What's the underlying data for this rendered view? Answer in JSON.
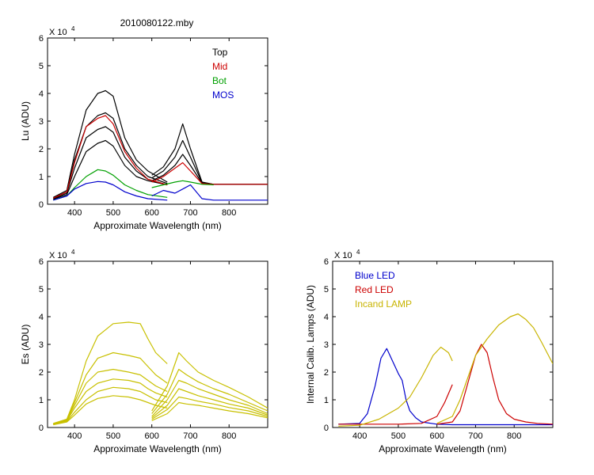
{
  "figure_title": "2010080122.mby",
  "chart_data": [
    {
      "id": "lu",
      "type": "line",
      "title": "2010080122.mby",
      "xlabel": "Approximate Wavelength (nm)",
      "ylabel": "Lu (ADU)",
      "exponent_label": "X 10",
      "exponent_power": "4",
      "xlim": [
        330,
        900
      ],
      "ylim": [
        0,
        6
      ],
      "xticks": [
        "400",
        "500",
        "600",
        "700",
        "800"
      ],
      "xtick_values": [
        400,
        500,
        600,
        700,
        800
      ],
      "yticks": [
        "0",
        "1",
        "2",
        "3",
        "4",
        "5",
        "6"
      ],
      "ytick_values": [
        0,
        1,
        2,
        3,
        4,
        5,
        6
      ],
      "grid": false,
      "legend_position": "top-right",
      "legend": [
        {
          "name": "Top",
          "color": "#000000"
        },
        {
          "name": "Mid",
          "color": "#cc0000"
        },
        {
          "name": "Bot",
          "color": "#00a000"
        },
        {
          "name": "MOS",
          "color": "#0000cc"
        }
      ],
      "series": [
        {
          "group": "Top",
          "color": "#000000",
          "x": [
            345,
            380,
            400,
            430,
            460,
            480,
            500,
            530,
            560,
            590,
            640
          ],
          "y": [
            0.25,
            0.5,
            1.8,
            3.4,
            4.0,
            4.1,
            3.9,
            2.4,
            1.6,
            1.2,
            0.8
          ]
        },
        {
          "group": "Top",
          "color": "#000000",
          "x": [
            345,
            380,
            400,
            430,
            460,
            480,
            500,
            530,
            560,
            590,
            640
          ],
          "y": [
            0.22,
            0.45,
            1.6,
            2.8,
            3.2,
            3.3,
            3.1,
            2.0,
            1.4,
            1.0,
            0.75
          ]
        },
        {
          "group": "Top",
          "color": "#000000",
          "x": [
            345,
            380,
            400,
            430,
            460,
            480,
            500,
            530,
            560,
            590,
            640
          ],
          "y": [
            0.2,
            0.4,
            1.3,
            2.4,
            2.7,
            2.8,
            2.6,
            1.7,
            1.2,
            0.9,
            0.7
          ]
        },
        {
          "group": "Top",
          "color": "#000000",
          "x": [
            345,
            380,
            400,
            430,
            460,
            480,
            500,
            530,
            560,
            590,
            640
          ],
          "y": [
            0.18,
            0.35,
            1.0,
            1.9,
            2.2,
            2.3,
            2.1,
            1.4,
            1.0,
            0.85,
            0.7
          ]
        },
        {
          "group": "Top",
          "color": "#000000",
          "x": [
            600,
            630,
            660,
            680,
            700,
            730,
            760,
            800,
            850,
            900
          ],
          "y": [
            1.05,
            1.35,
            2.0,
            2.9,
            2.0,
            0.8,
            0.72,
            0.72,
            0.72,
            0.72
          ]
        },
        {
          "group": "Top",
          "color": "#000000",
          "x": [
            600,
            630,
            660,
            680,
            700,
            730,
            760,
            800,
            850,
            900
          ],
          "y": [
            0.95,
            1.2,
            1.7,
            2.3,
            1.7,
            0.78,
            0.72,
            0.72,
            0.72,
            0.72
          ]
        },
        {
          "group": "Top",
          "color": "#000000",
          "x": [
            600,
            630,
            660,
            680,
            700,
            730,
            760,
            800,
            850,
            900
          ],
          "y": [
            0.85,
            1.05,
            1.4,
            1.8,
            1.4,
            0.76,
            0.72,
            0.72,
            0.72,
            0.72
          ]
        },
        {
          "group": "Mid",
          "color": "#cc0000",
          "x": [
            345,
            380,
            400,
            430,
            460,
            480,
            500,
            530,
            560,
            590,
            640
          ],
          "y": [
            0.22,
            0.45,
            1.5,
            2.8,
            3.1,
            3.2,
            2.9,
            1.9,
            1.3,
            0.9,
            0.7
          ]
        },
        {
          "group": "Mid",
          "color": "#cc0000",
          "x": [
            600,
            630,
            660,
            680,
            700,
            730,
            760,
            800,
            850,
            900
          ],
          "y": [
            0.8,
            1.0,
            1.3,
            1.5,
            1.2,
            0.75,
            0.72,
            0.72,
            0.72,
            0.72
          ]
        },
        {
          "group": "Bot",
          "color": "#00a000",
          "x": [
            345,
            380,
            400,
            430,
            460,
            480,
            500,
            530,
            560,
            590,
            640
          ],
          "y": [
            0.15,
            0.3,
            0.6,
            1.0,
            1.25,
            1.2,
            1.05,
            0.7,
            0.5,
            0.35,
            0.25
          ]
        },
        {
          "group": "Bot",
          "color": "#00a000",
          "x": [
            600,
            630,
            660,
            680,
            700,
            730,
            760
          ],
          "y": [
            0.6,
            0.7,
            0.8,
            0.85,
            0.8,
            0.72,
            0.7
          ]
        },
        {
          "group": "MOS",
          "color": "#0000cc",
          "x": [
            345,
            380,
            400,
            430,
            460,
            480,
            500,
            530,
            560,
            590,
            640
          ],
          "y": [
            0.15,
            0.3,
            0.55,
            0.75,
            0.82,
            0.8,
            0.7,
            0.45,
            0.3,
            0.2,
            0.15
          ]
        },
        {
          "group": "MOS",
          "color": "#0000cc",
          "x": [
            600,
            630,
            660,
            680,
            700,
            730,
            760,
            800,
            850,
            900
          ],
          "y": [
            0.3,
            0.5,
            0.4,
            0.55,
            0.7,
            0.2,
            0.15,
            0.15,
            0.15,
            0.15
          ]
        }
      ]
    },
    {
      "id": "es",
      "type": "line",
      "xlabel": "Approximate Wavelength (nm)",
      "ylabel": "Es (ADU)",
      "exponent_label": "X 10",
      "exponent_power": "4",
      "xlim": [
        330,
        900
      ],
      "ylim": [
        0,
        6
      ],
      "xticks": [
        "400",
        "500",
        "600",
        "700",
        "800"
      ],
      "xtick_values": [
        400,
        500,
        600,
        700,
        800
      ],
      "yticks": [
        "0",
        "1",
        "2",
        "3",
        "4",
        "5",
        "6"
      ],
      "ytick_values": [
        0,
        1,
        2,
        3,
        4,
        5,
        6
      ],
      "grid": false,
      "legend": [],
      "series": [
        {
          "color": "#c8c000",
          "x": [
            345,
            380,
            400,
            430,
            460,
            500,
            540,
            570,
            590,
            610,
            640
          ],
          "y": [
            0.15,
            0.3,
            1.0,
            2.4,
            3.3,
            3.75,
            3.8,
            3.75,
            3.2,
            2.7,
            2.3
          ]
        },
        {
          "color": "#c8c000",
          "x": [
            345,
            380,
            400,
            430,
            460,
            500,
            540,
            570,
            590,
            610,
            640
          ],
          "y": [
            0.14,
            0.28,
            0.9,
            1.9,
            2.5,
            2.7,
            2.6,
            2.5,
            2.2,
            1.9,
            1.6
          ]
        },
        {
          "color": "#c8c000",
          "x": [
            345,
            380,
            400,
            430,
            460,
            500,
            540,
            570,
            590,
            610,
            640
          ],
          "y": [
            0.13,
            0.26,
            0.8,
            1.6,
            2.0,
            2.1,
            2.0,
            1.9,
            1.7,
            1.5,
            1.3
          ]
        },
        {
          "color": "#c8c000",
          "x": [
            345,
            380,
            400,
            430,
            460,
            500,
            540,
            570,
            590,
            610,
            640
          ],
          "y": [
            0.12,
            0.24,
            0.7,
            1.3,
            1.6,
            1.75,
            1.7,
            1.6,
            1.4,
            1.25,
            1.1
          ]
        },
        {
          "color": "#c8c000",
          "x": [
            345,
            380,
            400,
            430,
            460,
            500,
            540,
            570,
            590,
            610,
            640
          ],
          "y": [
            0.11,
            0.22,
            0.55,
            1.0,
            1.3,
            1.45,
            1.4,
            1.3,
            1.15,
            1.0,
            0.9
          ]
        },
        {
          "color": "#c8c000",
          "x": [
            345,
            380,
            400,
            430,
            460,
            500,
            540,
            570,
            590,
            610,
            640
          ],
          "y": [
            0.1,
            0.2,
            0.45,
            0.85,
            1.05,
            1.15,
            1.1,
            1.0,
            0.9,
            0.8,
            0.7
          ]
        },
        {
          "color": "#c8c000",
          "x": [
            600,
            640,
            670,
            690,
            720,
            760,
            800,
            850,
            900
          ],
          "y": [
            0.6,
            1.5,
            2.7,
            2.4,
            2.0,
            1.7,
            1.45,
            1.1,
            0.7
          ]
        },
        {
          "color": "#c8c000",
          "x": [
            600,
            640,
            670,
            690,
            720,
            760,
            800,
            850,
            900
          ],
          "y": [
            0.5,
            1.2,
            2.1,
            1.9,
            1.65,
            1.4,
            1.2,
            0.9,
            0.6
          ]
        },
        {
          "color": "#c8c000",
          "x": [
            600,
            640,
            670,
            690,
            720,
            760,
            800,
            850,
            900
          ],
          "y": [
            0.4,
            1.0,
            1.7,
            1.6,
            1.4,
            1.2,
            1.0,
            0.8,
            0.5
          ]
        },
        {
          "color": "#c8c000",
          "x": [
            600,
            640,
            670,
            690,
            720,
            760,
            800,
            850,
            900
          ],
          "y": [
            0.35,
            0.8,
            1.4,
            1.3,
            1.15,
            1.0,
            0.85,
            0.7,
            0.45
          ]
        },
        {
          "color": "#c8c000",
          "x": [
            600,
            640,
            670,
            690,
            720,
            760,
            800,
            850,
            900
          ],
          "y": [
            0.3,
            0.65,
            1.1,
            1.05,
            0.95,
            0.85,
            0.72,
            0.6,
            0.4
          ]
        },
        {
          "color": "#c8c000",
          "x": [
            600,
            640,
            670,
            690,
            720,
            760,
            800,
            850,
            900
          ],
          "y": [
            0.25,
            0.5,
            0.9,
            0.85,
            0.8,
            0.7,
            0.6,
            0.5,
            0.35
          ]
        }
      ]
    },
    {
      "id": "cal",
      "type": "line",
      "xlabel": "Approximate Wavelength (nm)",
      "ylabel": "Internal Calib. Lamps (ADU)",
      "exponent_label": "X 10",
      "exponent_power": "4",
      "xlim": [
        330,
        900
      ],
      "ylim": [
        0,
        6
      ],
      "xticks": [
        "400",
        "500",
        "600",
        "700",
        "800"
      ],
      "xtick_values": [
        400,
        500,
        600,
        700,
        800
      ],
      "yticks": [
        "0",
        "1",
        "2",
        "3",
        "4",
        "5",
        "6"
      ],
      "ytick_values": [
        0,
        1,
        2,
        3,
        4,
        5,
        6
      ],
      "grid": false,
      "legend_position": "top-left",
      "legend": [
        {
          "name": "Blue LED",
          "color": "#0000cc"
        },
        {
          "name": "Red LED",
          "color": "#cc0000"
        },
        {
          "name": "Incand LAMP",
          "color": "#c8b400"
        }
      ],
      "series": [
        {
          "group": "Blue LED",
          "color": "#0000cc",
          "x": [
            345,
            400,
            420,
            440,
            455,
            470,
            485,
            500,
            510,
            520,
            530,
            545,
            560,
            600,
            640,
            700,
            800,
            900
          ],
          "y": [
            0.12,
            0.15,
            0.5,
            1.5,
            2.5,
            2.85,
            2.4,
            1.95,
            1.7,
            1.0,
            0.6,
            0.35,
            0.2,
            0.12,
            0.1,
            0.1,
            0.1,
            0.1
          ]
        },
        {
          "group": "Red LED",
          "color": "#cc0000",
          "x": [
            345,
            500,
            560,
            600,
            620,
            640
          ],
          "y": [
            0.12,
            0.12,
            0.15,
            0.4,
            0.9,
            1.55
          ]
        },
        {
          "group": "Red LED",
          "color": "#cc0000",
          "x": [
            600,
            640,
            660,
            680,
            700,
            715,
            730,
            745,
            760,
            780,
            800,
            830,
            860,
            900
          ],
          "y": [
            0.12,
            0.2,
            0.6,
            1.6,
            2.6,
            3.0,
            2.7,
            1.8,
            1.0,
            0.5,
            0.3,
            0.2,
            0.15,
            0.12
          ]
        },
        {
          "group": "Incand LAMP",
          "color": "#c8b400",
          "x": [
            345,
            400,
            450,
            500,
            530,
            560,
            590,
            610,
            630,
            640
          ],
          "y": [
            0.05,
            0.08,
            0.3,
            0.7,
            1.1,
            1.8,
            2.6,
            2.9,
            2.7,
            2.4
          ]
        },
        {
          "group": "Incand LAMP",
          "color": "#c8b400",
          "x": [
            600,
            640,
            660,
            680,
            700,
            730,
            760,
            790,
            810,
            830,
            850,
            870,
            900
          ],
          "y": [
            0.15,
            0.4,
            1.0,
            1.8,
            2.6,
            3.2,
            3.7,
            4.0,
            4.1,
            3.9,
            3.6,
            3.1,
            2.3
          ]
        }
      ]
    }
  ]
}
